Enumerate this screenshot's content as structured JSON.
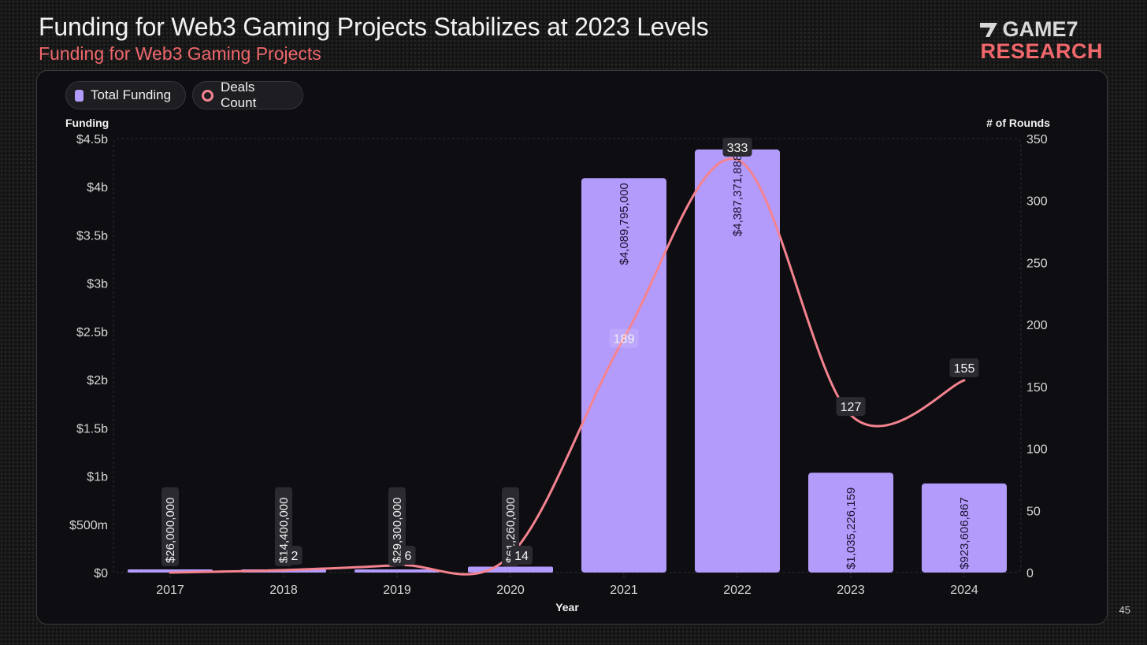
{
  "header": {
    "title": "Funding for Web3 Gaming Projects Stabilizes at 2023 Levels",
    "subtitle": "Funding for Web3 Gaming Projects",
    "logo_line1": "GAME7",
    "logo_line2": "RESEARCH"
  },
  "page_number": "45",
  "colors": {
    "bar": "#b39bfc",
    "line": "#f4838f",
    "accent": "#f0676c",
    "label_bg": "#2a2a30"
  },
  "chart_data": {
    "type": "bar",
    "title": "Funding for Web3 Gaming Projects",
    "xlabel": "Year",
    "ylabel": "Funding",
    "y2label": "# of Rounds",
    "legend": {
      "position": "top-left",
      "entries": [
        {
          "name": "Total Funding",
          "marker": "square",
          "color": "#b39bfc"
        },
        {
          "name": "Deals Count",
          "marker": "ring",
          "color": "#f4838f"
        }
      ]
    },
    "categories": [
      "2017",
      "2018",
      "2019",
      "2020",
      "2021",
      "2022",
      "2023",
      "2024"
    ],
    "ylim": [
      0,
      4500000000
    ],
    "y_ticks": [
      0,
      500000000,
      1000000000,
      1500000000,
      2000000000,
      2500000000,
      3000000000,
      3500000000,
      4000000000,
      4500000000
    ],
    "y_tick_labels": [
      "$0",
      "$500m",
      "$1b",
      "$1.5b",
      "$2b",
      "$2.5b",
      "$3b",
      "$3.5b",
      "$4b",
      "$4.5b"
    ],
    "y2lim": [
      0,
      350
    ],
    "y2_ticks": [
      0,
      50,
      100,
      150,
      200,
      250,
      300,
      350
    ],
    "y2_tick_labels": [
      "0",
      "50",
      "100",
      "150",
      "200",
      "250",
      "300",
      "350"
    ],
    "grid": true,
    "series": [
      {
        "name": "Total Funding",
        "type": "bar",
        "axis": "left",
        "values": [
          26000000,
          14400000,
          29300000,
          61260000,
          4089795000,
          4387371888,
          1035226159,
          923606867
        ],
        "labels": [
          "$26,000,000",
          "$14,400,000",
          "$29,300,000",
          "$61,260,000",
          "$4,089,795,000",
          "$4,387,371,888",
          "$1,035,226,159",
          "$923,606,867"
        ]
      },
      {
        "name": "Deals Count",
        "type": "line",
        "smooth": true,
        "axis": "right",
        "values": [
          0,
          2,
          6,
          14,
          189,
          333,
          127,
          155
        ],
        "labels": [
          "",
          "2",
          "6",
          "14",
          "189",
          "333",
          "127",
          "155"
        ]
      }
    ]
  }
}
